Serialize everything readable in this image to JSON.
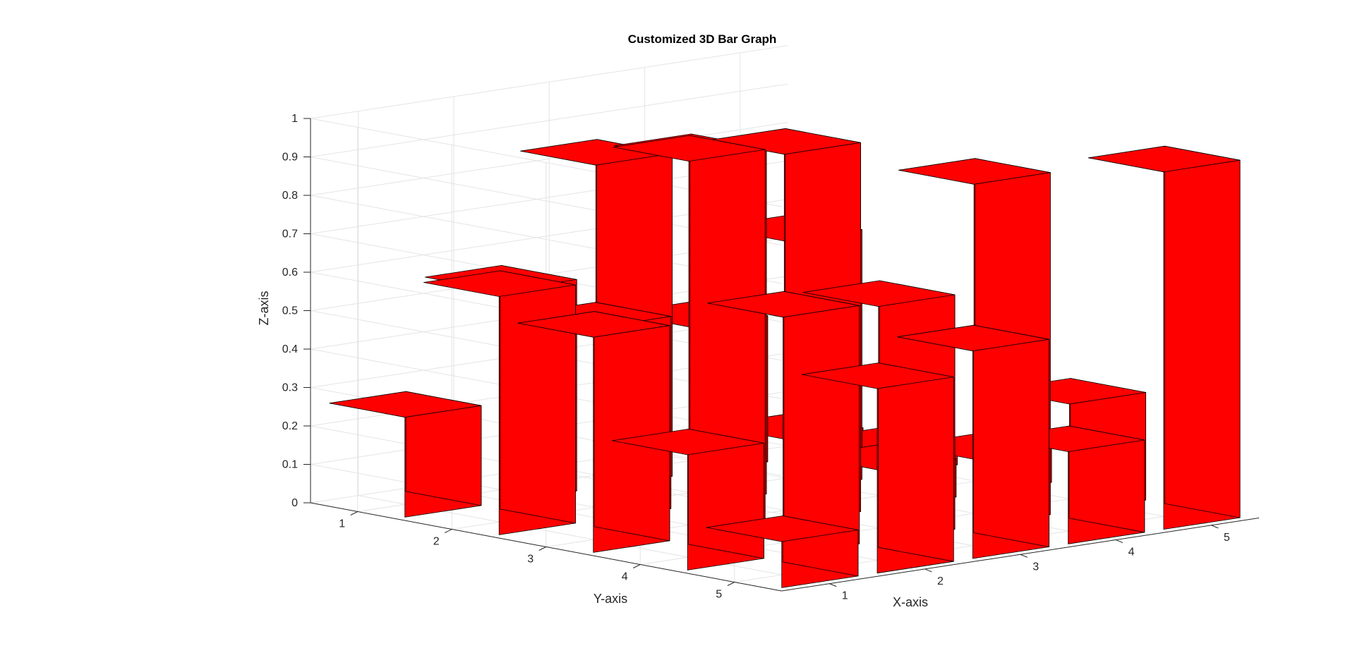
{
  "chart_data": {
    "type": "bar3d",
    "title": "Customized 3D Bar Graph",
    "xlabel": "X-axis",
    "ylabel": "Y-axis",
    "zlabel": "Z-axis",
    "x_ticks": [
      "1",
      "2",
      "3",
      "4",
      "5"
    ],
    "y_ticks": [
      "1",
      "2",
      "3",
      "4",
      "5"
    ],
    "z_ticks": [
      "0",
      "0.1",
      "0.2",
      "0.3",
      "0.4",
      "0.5",
      "0.6",
      "0.7",
      "0.8",
      "0.9",
      "1"
    ],
    "zlim": [
      0,
      1
    ],
    "grid": true,
    "bar_color": "#ff0000",
    "edge_color": "#000000",
    "values_note": "values[y-1][x-1]",
    "values": [
      [
        0.26,
        0.55,
        0.84,
        0.38,
        0.05
      ],
      [
        0.62,
        0.5,
        0.9,
        0.65,
        0.06
      ],
      [
        0.56,
        0.98,
        0.96,
        0.1,
        0.09
      ],
      [
        0.3,
        0.62,
        0.61,
        0.89,
        0.28
      ],
      [
        0.12,
        0.48,
        0.54,
        0.24,
        0.93
      ]
    ]
  }
}
